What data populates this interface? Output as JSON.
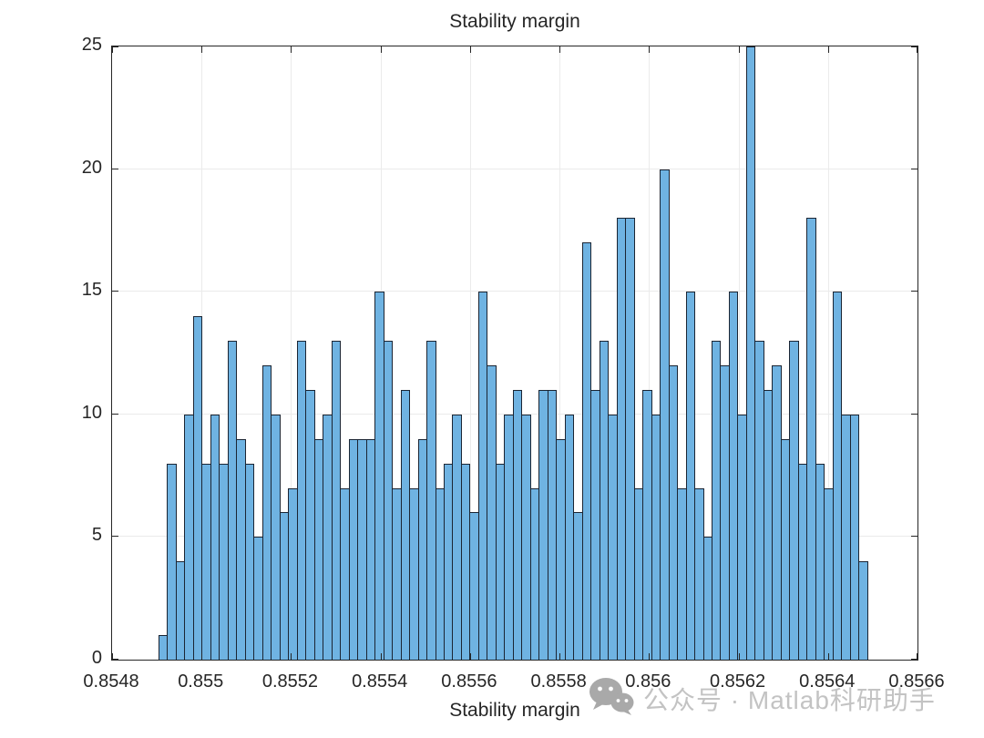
{
  "chart_data": {
    "type": "bar",
    "subtype": "histogram",
    "title": "Stability margin",
    "xlabel": "Stability margin",
    "ylabel": "",
    "xlim": [
      0.8548,
      0.8566
    ],
    "ylim": [
      0,
      25
    ],
    "grid": true,
    "x_ticks": [
      "0.8548",
      "0.855",
      "0.8552",
      "0.8554",
      "0.8556",
      "0.8558",
      "0.856",
      "0.8562",
      "0.8564",
      "0.8566"
    ],
    "y_ticks": [
      "0",
      "5",
      "10",
      "15",
      "20",
      "25"
    ],
    "bin_start": 0.8549,
    "bin_width": 1.93e-05,
    "values": [
      1,
      8,
      4,
      10,
      14,
      8,
      10,
      8,
      13,
      9,
      8,
      5,
      12,
      10,
      6,
      7,
      13,
      11,
      9,
      10,
      13,
      7,
      9,
      9,
      9,
      15,
      13,
      7,
      11,
      7,
      9,
      13,
      7,
      8,
      10,
      8,
      6,
      15,
      12,
      8,
      10,
      11,
      10,
      7,
      11,
      11,
      9,
      10,
      6,
      17,
      11,
      13,
      10,
      18,
      18,
      7,
      11,
      10,
      20,
      12,
      7,
      15,
      7,
      5,
      13,
      12,
      15,
      10,
      25,
      13,
      11,
      12,
      9,
      13,
      8,
      18,
      8,
      7,
      15,
      10,
      10,
      4
    ],
    "colors": {
      "bar_fill": "#6fb3e2",
      "bar_edge": "#1b2533",
      "axis": "#262626",
      "grid": "#ebebeb",
      "background": "#ffffff"
    }
  },
  "watermark": {
    "icon": "wechat-icon",
    "text": "公众号 · Matlab科研助手",
    "color": "#c3c3c3"
  }
}
